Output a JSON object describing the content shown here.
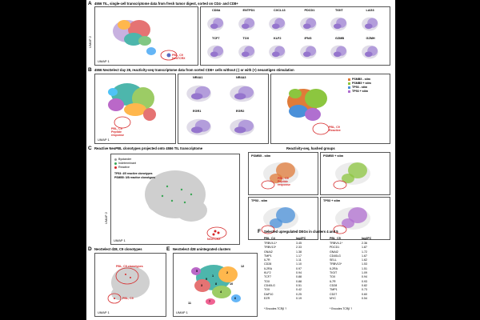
{
  "panels": {
    "A": {
      "letter": "A",
      "title": "4556 TIL, single-cell transcriptome data from fresh tumor digest, sorted on CD4- and CD8+",
      "genes_row1": [
        "CD8A",
        "ENTPD1",
        "CXCL13",
        "PDCD1",
        "TIGIT",
        "LAG3"
      ],
      "genes_row2": [
        "TCF7",
        "TOX",
        "KLF2",
        "IFNG",
        "GZMB",
        "GZMH"
      ],
      "annotation": "PBL, C9\nNeoTCRX"
    },
    "B": {
      "letter": "B",
      "title": "4556 NeoSelect day 28, reactivity-seq transcriptome data from sorted CD8+ cells without (-) or with (+) neoantigen stimulation",
      "genes": [
        "NR4A1",
        "NR4A3",
        "EGR1",
        "EGR2"
      ],
      "annotation1": "PBL, C9\nPeptide\nresponse",
      "annotation2": "PBL, C9\nReactive",
      "legend": [
        {
          "label": "PSMB5 - stim",
          "color": "#e07b39"
        },
        {
          "label": "PSMB5 + stim",
          "color": "#8cc63f"
        },
        {
          "label": "TP53 - stim",
          "color": "#4a90d9"
        },
        {
          "label": "TP53 + stim",
          "color": "#b06fd0"
        }
      ]
    },
    "C": {
      "letter": "C",
      "title": "Reactive NeoPBL clonotypes projected onto 4556 TIL transcriptome",
      "legend": [
        {
          "label": "Bystander",
          "color": "#9a9a9a"
        },
        {
          "label": "Indeterminant",
          "color": "#3aa655"
        },
        {
          "label": "Reactive",
          "color": "#d62728"
        }
      ],
      "note1": "TP53: 4/5 reactive clonotypes",
      "note2": "PSMB5: 3/8 reactive clonotypes",
      "annotation": "NeoTCRX",
      "hashed_title": "Reactivity-seq, hashed groups",
      "hashed_panels": [
        "PSMB5 - stim",
        "PSMB5 + stim",
        "TP53 - stim",
        "TP53 + stim"
      ],
      "hashed_annotation": "PBL, C9\nPeptide\nresponse"
    },
    "D": {
      "letter": "D",
      "title": "NeoSelect d28, C9 clonotypes",
      "annotation1": "PBL, C9 clonotypes",
      "annotation2": "PBL, C9"
    },
    "E": {
      "letter": "E",
      "title": "NeoSelect d28 unintegrated clusters",
      "clusters": [
        "1",
        "2",
        "3",
        "4",
        "5",
        "6",
        "7",
        "8",
        "9",
        "10",
        "11",
        "12"
      ]
    },
    "F": {
      "letter": "F",
      "title": "Selected upregulated DEGs in clusters 4 and 5",
      "col1_head": "PBL_C4",
      "col1_lfc": "log2FC",
      "col2_head": "PBL_C5",
      "col2_lfc": "log2FC",
      "c4": [
        [
          "TRBV4-1*",
          "3.45"
        ],
        [
          "TRBV13*",
          "2.33"
        ],
        [
          "GNAI2",
          "1.38"
        ],
        [
          "TMP1",
          "1.17"
        ],
        [
          "IL7R",
          "1.11"
        ],
        [
          "CD28",
          "1.10"
        ],
        [
          "IL2RA",
          "0.97"
        ],
        [
          "KLF2",
          "0.94"
        ],
        [
          "TCF7",
          "0.88"
        ],
        [
          "TOX",
          "0.88"
        ],
        [
          "CD40LG",
          "0.51"
        ],
        [
          "TOX",
          "0.42"
        ],
        [
          "DAP10",
          "0.25"
        ],
        [
          "EZR",
          "0.19"
        ]
      ],
      "c5": [
        [
          "TRBV4-1*",
          "2.36"
        ],
        [
          "PDCD1",
          "1.87"
        ],
        [
          "GNAI2",
          "1.72"
        ],
        [
          "CD40LG",
          "1.67"
        ],
        [
          "SELL",
          "1.62"
        ],
        [
          "TRBV13*",
          "1.53"
        ],
        [
          "IL2RA",
          "1.51"
        ],
        [
          "TIGIT",
          "1.09"
        ],
        [
          "TOX",
          "0.94"
        ],
        [
          "IL7R",
          "0.93"
        ],
        [
          "CD28",
          "0.82"
        ],
        [
          "TMP1",
          "0.73"
        ],
        [
          "CD27",
          "0.60"
        ],
        [
          "MYC",
          "0.54"
        ]
      ],
      "foot1": "* Encodes TCRβ ?",
      "foot2": "* Encodes TCRβ ?"
    },
    "axis": {
      "x": "UMAP 1",
      "y": "UMAP 2"
    }
  }
}
